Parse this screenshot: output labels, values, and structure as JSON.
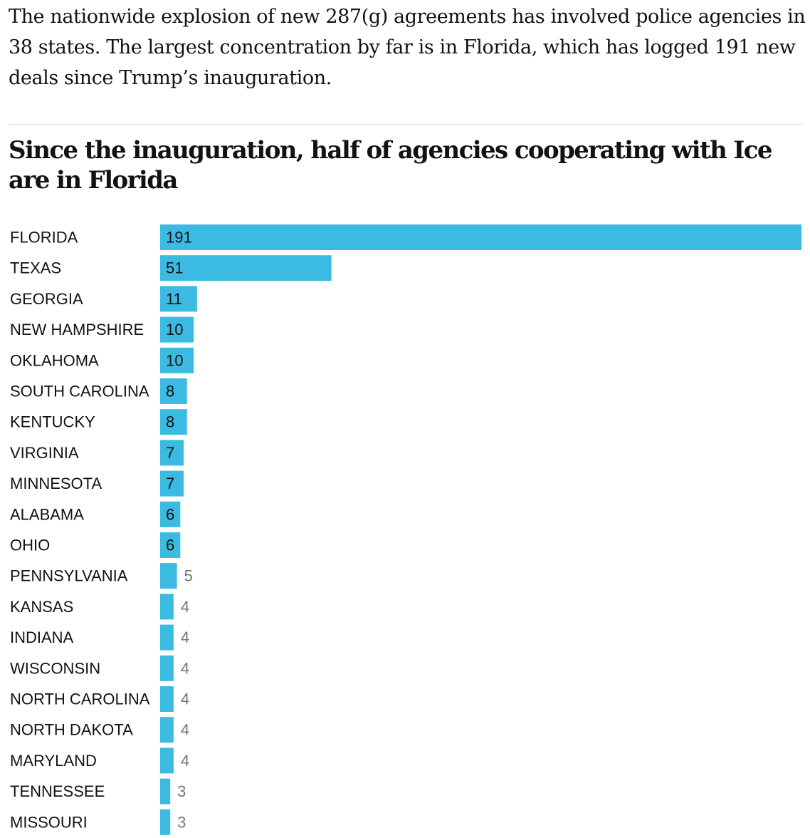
{
  "intro": "The nationwide explosion of new 287(g) agreements has involved police agencies in 38 states. The largest concentration by far is in Florida, which has logged 191 new deals since Trump’s inauguration.",
  "chart_data": {
    "type": "bar",
    "orientation": "horizontal",
    "title": "Since the inauguration, half of agencies cooperating with Ice are in Florida",
    "xlabel": "",
    "ylabel": "",
    "xlim": [
      0,
      191
    ],
    "grid": false,
    "bar_color": "#3bbbe2",
    "categories": [
      "FLORIDA",
      "TEXAS",
      "GEORGIA",
      "NEW HAMPSHIRE",
      "OKLAHOMA",
      "SOUTH CAROLINA",
      "KENTUCKY",
      "VIRGINIA",
      "MINNESOTA",
      "ALABAMA",
      "OHIO",
      "PENNSYLVANIA",
      "KANSAS",
      "INDIANA",
      "WISCONSIN",
      "NORTH CAROLINA",
      "NORTH DAKOTA",
      "MARYLAND",
      "TENNESSEE",
      "MISSOURI"
    ],
    "values": [
      191,
      51,
      11,
      10,
      10,
      8,
      8,
      7,
      7,
      6,
      6,
      5,
      4,
      4,
      4,
      4,
      4,
      4,
      3,
      3
    ]
  }
}
